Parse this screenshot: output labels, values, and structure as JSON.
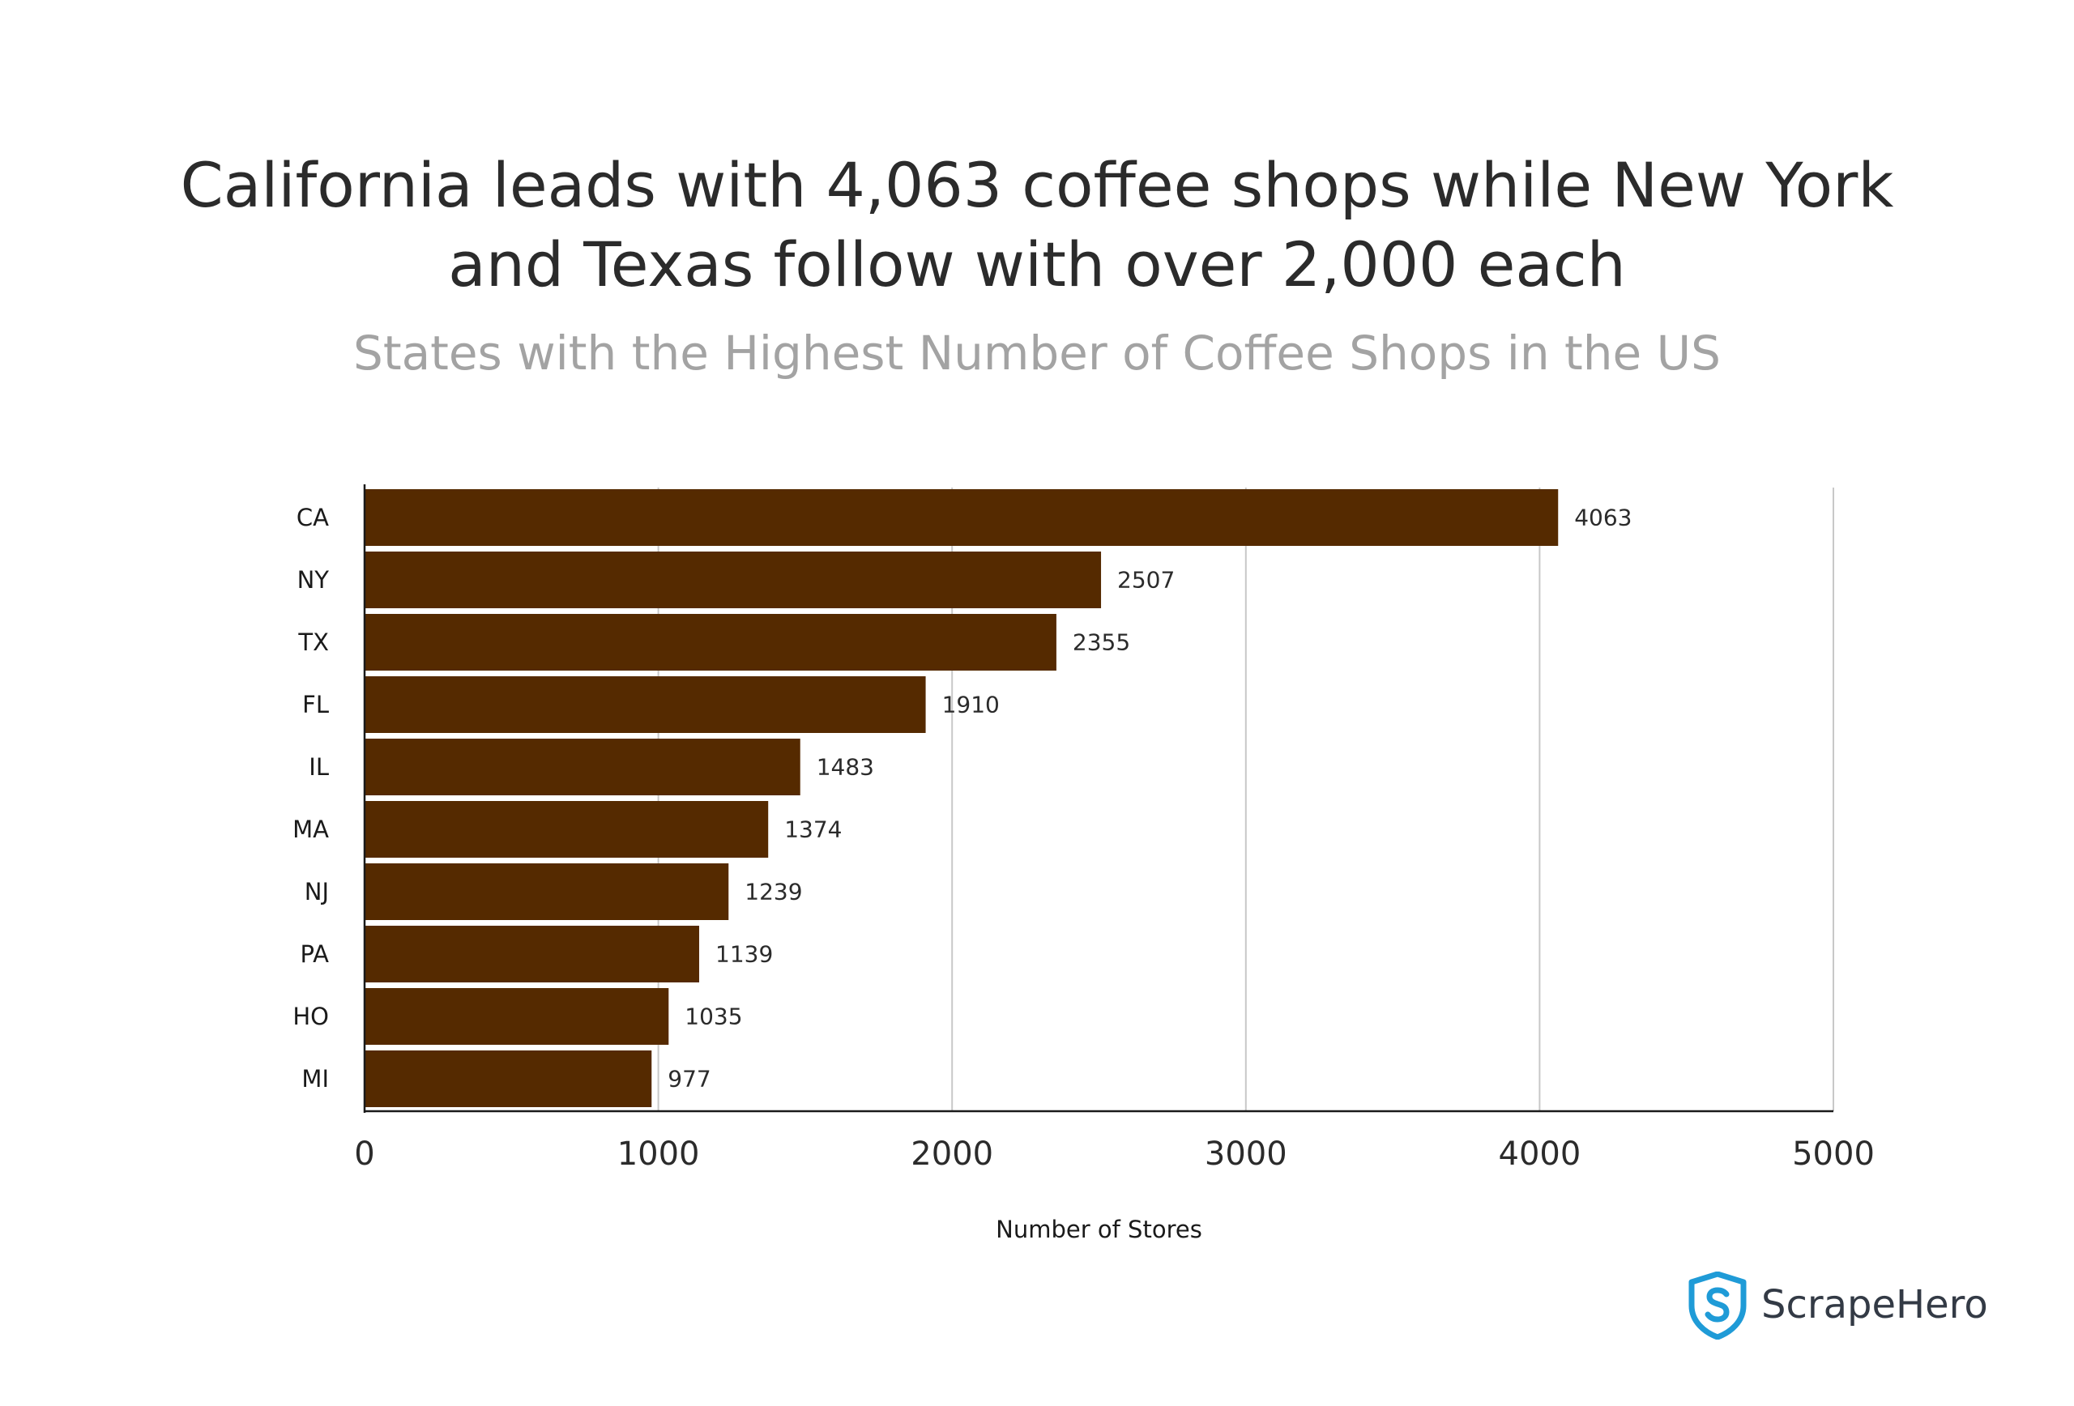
{
  "chart_data": {
    "type": "bar",
    "orientation": "horizontal",
    "title": "California leads with 4,063 coffee shops while New York and Texas follow with over 2,000 each",
    "title_lines": [
      "California leads with 4,063 coffee shops while New York",
      "and Texas follow with over 2,000 each"
    ],
    "subtitle": "States with the Highest Number of Coffee Shops in the US",
    "categories": [
      "CA",
      "NY",
      "TX",
      "FL",
      "IL",
      "MA",
      "NJ",
      "PA",
      "HO",
      "MI"
    ],
    "values": [
      4063,
      2507,
      2355,
      1910,
      1483,
      1374,
      1239,
      1139,
      1035,
      977
    ],
    "xlabel": "Number of Stores",
    "ylabel": "",
    "xlim": [
      0,
      5000
    ],
    "xticks": [
      0,
      1000,
      2000,
      3000,
      4000,
      5000
    ],
    "grid": "vertical",
    "data_labels": true,
    "bar_color": "#552a00",
    "grid_color": "#c8c8c8"
  },
  "brand": {
    "name": "ScrapeHero",
    "logo_color": "#1f9bd7",
    "text_color": "#333a45"
  }
}
